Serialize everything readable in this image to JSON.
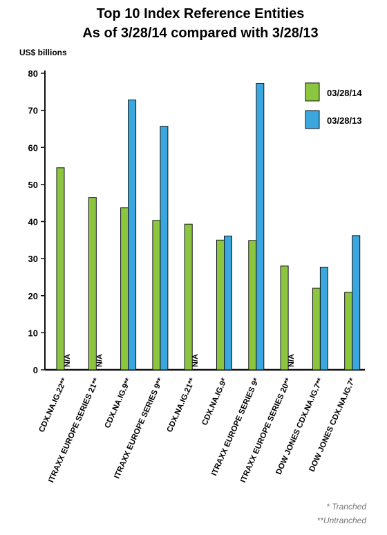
{
  "chart_data": {
    "type": "bar",
    "title": [
      "Top 10 Index Reference Entities",
      "As of 3/28/14 compared with 3/28/13"
    ],
    "ylabel": "US$ billions",
    "ylim": [
      0,
      80
    ],
    "yticks": [
      0,
      10,
      20,
      30,
      40,
      50,
      60,
      70,
      80
    ],
    "categories": [
      "CDX.NA.IG.22**",
      "ITRAXX EUROPE SERIES 21**",
      "CDX.NA.IG.9**",
      "ITRAXX EUROPE SERIES 9**",
      "CDX.NA.IG.21**",
      "CDX.NA.IG.9*",
      "ITRAXX EUROPE SERIES 9*",
      "ITRAXX EUROPE SERIES 20**",
      "DOW JONES CDX.NA.IG.7**",
      "DOW JONES CDX.NA.IG.7*"
    ],
    "series": [
      {
        "name": "03/28/14",
        "color": "#8cc63f",
        "values": [
          54.5,
          46.5,
          43.7,
          40.3,
          39.3,
          35.0,
          34.9,
          28.0,
          22.0,
          20.9
        ]
      },
      {
        "name": "03/28/13",
        "color": "#3aa8df",
        "values": [
          null,
          null,
          72.8,
          65.7,
          null,
          36.1,
          77.3,
          null,
          27.7,
          36.2
        ]
      }
    ],
    "na_label": "N/A",
    "legend_position": "top-right",
    "grid": false
  },
  "footnotes": [
    "* Tranched",
    "**Untranched"
  ]
}
